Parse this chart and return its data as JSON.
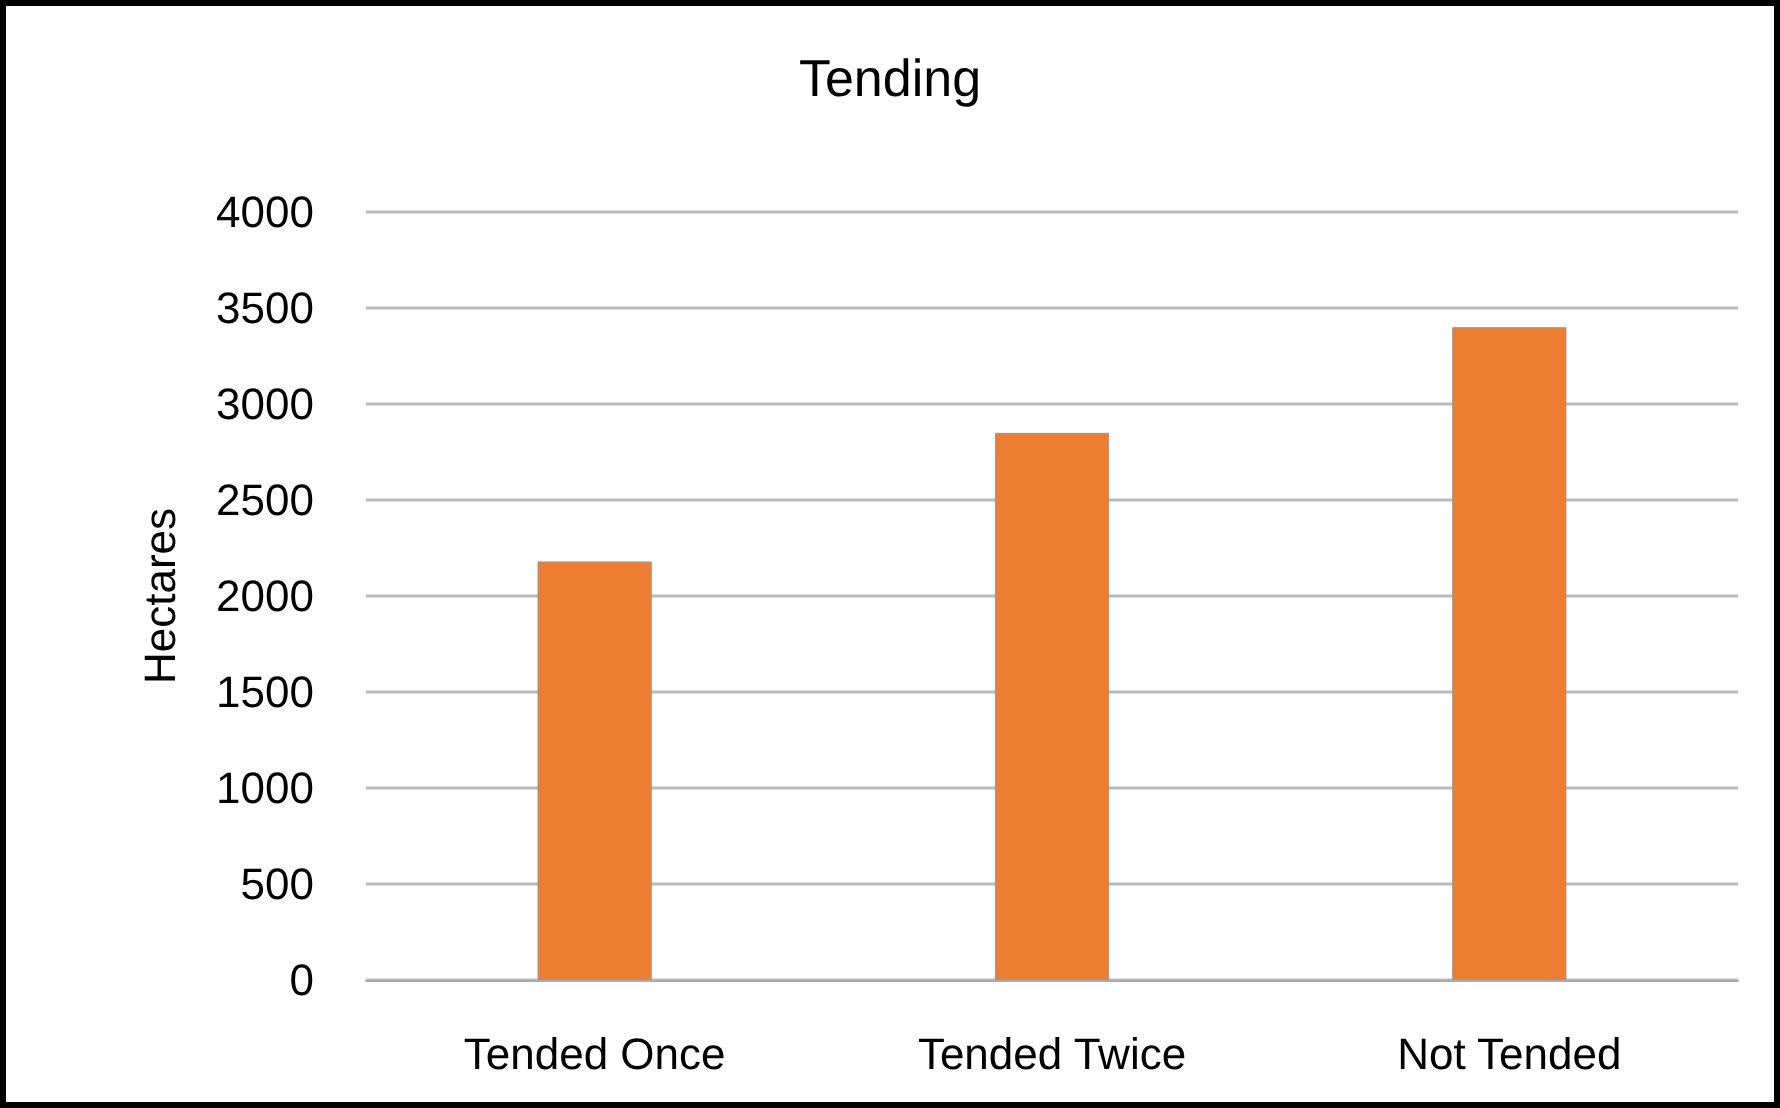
{
  "chart_data": {
    "type": "bar",
    "title": "Tending",
    "ylabel": "Hectares",
    "categories": [
      "Tended Once",
      "Tended Twice",
      "Not Tended"
    ],
    "values": [
      2180,
      2850,
      3400
    ],
    "color": "#ed7d31",
    "ylim": [
      0,
      4000
    ],
    "yticks": [
      0,
      500,
      1000,
      1500,
      2000,
      2500,
      3000,
      3500,
      4000
    ],
    "grid": "y"
  }
}
